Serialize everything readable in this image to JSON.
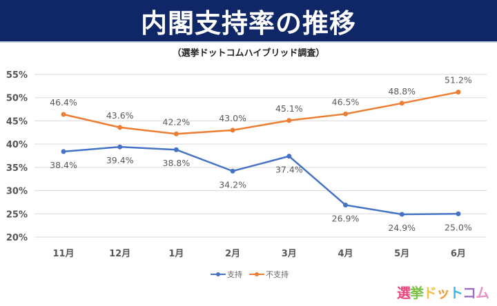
{
  "header": {
    "title": "内閣支持率の推移",
    "subtitle": "（選挙ドットコムハイブリッド調査）"
  },
  "chart_data": {
    "type": "line",
    "title": "内閣支持率の推移",
    "subtitle": "（選挙ドットコムハイブリッド調査）",
    "categories": [
      "11月",
      "12月",
      "1月",
      "2月",
      "3月",
      "4月",
      "5月",
      "6月"
    ],
    "ylim": [
      20,
      55
    ],
    "yticks": [
      20,
      25,
      30,
      35,
      40,
      45,
      50,
      55
    ],
    "ytick_labels": [
      "20%",
      "25%",
      "30%",
      "35%",
      "40%",
      "45%",
      "50%",
      "55%"
    ],
    "grid": true,
    "legend_position": "bottom",
    "series": [
      {
        "name": "支持",
        "color": "#4472c4",
        "values": [
          38.4,
          39.4,
          38.8,
          34.2,
          37.4,
          26.9,
          24.9,
          25.0
        ],
        "labels": [
          "38.4%",
          "39.4%",
          "38.8%",
          "34.2%",
          "37.4%",
          "26.9%",
          "24.9%",
          "25.0%"
        ]
      },
      {
        "name": "不支持",
        "color": "#ed7d31",
        "values": [
          46.4,
          43.6,
          42.2,
          43.0,
          45.1,
          46.5,
          48.8,
          51.2
        ],
        "labels": [
          "46.4%",
          "43.6%",
          "42.2%",
          "43.0%",
          "45.1%",
          "46.5%",
          "48.8%",
          "51.2%"
        ]
      }
    ]
  },
  "logo": {
    "text": "選挙ドットコム"
  }
}
